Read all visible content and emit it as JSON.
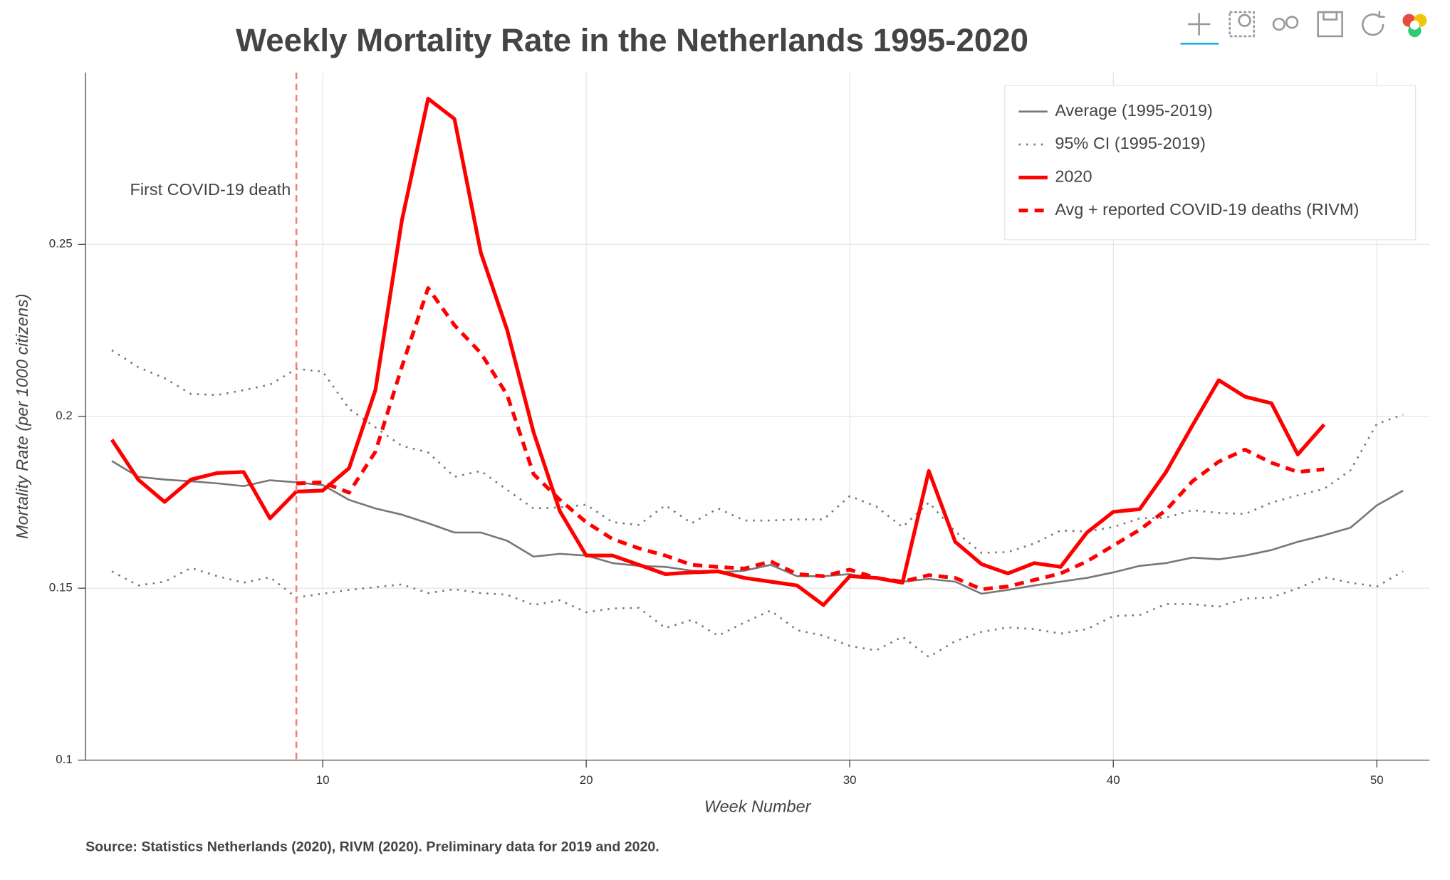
{
  "chart_data": {
    "type": "line",
    "title": "Weekly Mortality Rate in the Netherlands 1995-2020",
    "x_label": "Week Number",
    "y_label": "Mortality Rate (per 1000 citizens)",
    "source": "Source: Statistics Netherlands (2020), RIVM (2020). Preliminary data for 2019 and 2020.",
    "xlim": [
      1,
      52
    ],
    "ylim": [
      0.1,
      0.3
    ],
    "xticks": [
      10,
      20,
      30,
      40,
      50
    ],
    "yticks": [
      0.1,
      0.15,
      0.2,
      0.25
    ],
    "grid": true,
    "legend": "top-right",
    "annotation": {
      "x": 9,
      "label": "First COVID-19 death",
      "color": "#f08080"
    },
    "x": [
      2,
      3,
      4,
      5,
      6,
      7,
      8,
      9,
      10,
      11,
      12,
      13,
      14,
      15,
      16,
      17,
      18,
      19,
      20,
      21,
      22,
      23,
      24,
      25,
      26,
      27,
      28,
      29,
      30,
      31,
      32,
      33,
      34,
      35,
      36,
      37,
      38,
      39,
      40,
      41,
      42,
      43,
      44,
      45,
      46,
      47,
      48,
      49,
      50,
      51
    ],
    "series": [
      {
        "name": "Average (1995-2019)",
        "color": "#777777",
        "dash": "solid",
        "width": 2,
        "values": [
          0.187,
          0.1824,
          0.1816,
          0.1811,
          0.1805,
          0.1797,
          0.1814,
          0.1808,
          0.18,
          0.1757,
          0.1732,
          0.1714,
          0.1689,
          0.1662,
          0.1662,
          0.1638,
          0.1592,
          0.16,
          0.1595,
          0.1573,
          0.1565,
          0.1562,
          0.1551,
          0.1546,
          0.1551,
          0.1568,
          0.1535,
          0.1535,
          0.1541,
          0.1527,
          0.1519,
          0.1527,
          0.1519,
          0.1484,
          0.1495,
          0.1508,
          0.1519,
          0.153,
          0.1546,
          0.1565,
          0.1573,
          0.1589,
          0.1584,
          0.1595,
          0.1611,
          0.1635,
          0.1654,
          0.1676,
          0.1741,
          0.1784
        ]
      },
      {
        "name": "95% CI (1995-2019)",
        "color": "#777777",
        "dash": "dotted",
        "width": 2,
        "upper": [
          0.2192,
          0.2143,
          0.2111,
          0.2065,
          0.2062,
          0.2076,
          0.2092,
          0.2138,
          0.213,
          0.2022,
          0.1968,
          0.1914,
          0.1895,
          0.1824,
          0.1841,
          0.1786,
          0.1732,
          0.1735,
          0.1743,
          0.1692,
          0.1684,
          0.1741,
          0.1689,
          0.1732,
          0.1697,
          0.1697,
          0.17,
          0.17,
          0.1768,
          0.1738,
          0.1678,
          0.1749,
          0.1665,
          0.1603,
          0.1605,
          0.163,
          0.1668,
          0.1665,
          0.1678,
          0.1703,
          0.1705,
          0.1727,
          0.1719,
          0.1716,
          0.1749,
          0.177,
          0.1789,
          0.1843,
          0.1978,
          0.2005
        ],
        "lower": [
          0.1549,
          0.1508,
          0.1519,
          0.1559,
          0.1535,
          0.1516,
          0.1532,
          0.1473,
          0.1484,
          0.1495,
          0.1503,
          0.1511,
          0.1486,
          0.1497,
          0.1486,
          0.1481,
          0.1451,
          0.1465,
          0.143,
          0.1441,
          0.1443,
          0.1384,
          0.1408,
          0.1362,
          0.14,
          0.1435,
          0.1378,
          0.1362,
          0.1332,
          0.1319,
          0.1359,
          0.13,
          0.1346,
          0.1373,
          0.1386,
          0.1381,
          0.1368,
          0.1381,
          0.1419,
          0.1422,
          0.1454,
          0.1454,
          0.1446,
          0.147,
          0.1473,
          0.15,
          0.1532,
          0.1516,
          0.1505,
          0.1549
        ]
      },
      {
        "name": "2020",
        "color": "#ff0000",
        "dash": "solid",
        "width": 4,
        "values": [
          0.1932,
          0.1816,
          0.1751,
          0.1816,
          0.1835,
          0.1838,
          0.1703,
          0.1781,
          0.1784,
          0.1849,
          0.2076,
          0.2568,
          0.2924,
          0.2865,
          0.2476,
          0.2251,
          0.1954,
          0.1724,
          0.1595,
          0.1595,
          0.1568,
          0.1541,
          0.1546,
          0.1549,
          0.153,
          0.1519,
          0.1508,
          0.1451,
          0.1535,
          0.153,
          0.1516,
          0.1841,
          0.1635,
          0.157,
          0.1543,
          0.1573,
          0.1562,
          0.1662,
          0.1722,
          0.173,
          0.1838,
          0.1973,
          0.2105,
          0.2057,
          0.2038,
          0.1889,
          0.1976,
          null,
          null,
          null
        ]
      },
      {
        "name": "Avg + reported COVID-19 deaths (RIVM)",
        "color": "#ff0000",
        "dash": "dashed",
        "width": 4,
        "values": [
          null,
          null,
          null,
          null,
          null,
          null,
          null,
          0.1805,
          0.1808,
          0.1778,
          0.1897,
          0.2143,
          0.2373,
          0.2265,
          0.2184,
          0.2062,
          0.1832,
          0.1757,
          0.1692,
          0.1643,
          0.1616,
          0.1595,
          0.1568,
          0.1562,
          0.1557,
          0.1578,
          0.1541,
          0.1535,
          0.1554,
          0.153,
          0.1519,
          0.1538,
          0.153,
          0.1497,
          0.1505,
          0.1524,
          0.1543,
          0.1578,
          0.1624,
          0.167,
          0.1727,
          0.1811,
          0.1868,
          0.1903,
          0.1865,
          0.1838,
          0.1846,
          null,
          null,
          null
        ]
      }
    ]
  }
}
